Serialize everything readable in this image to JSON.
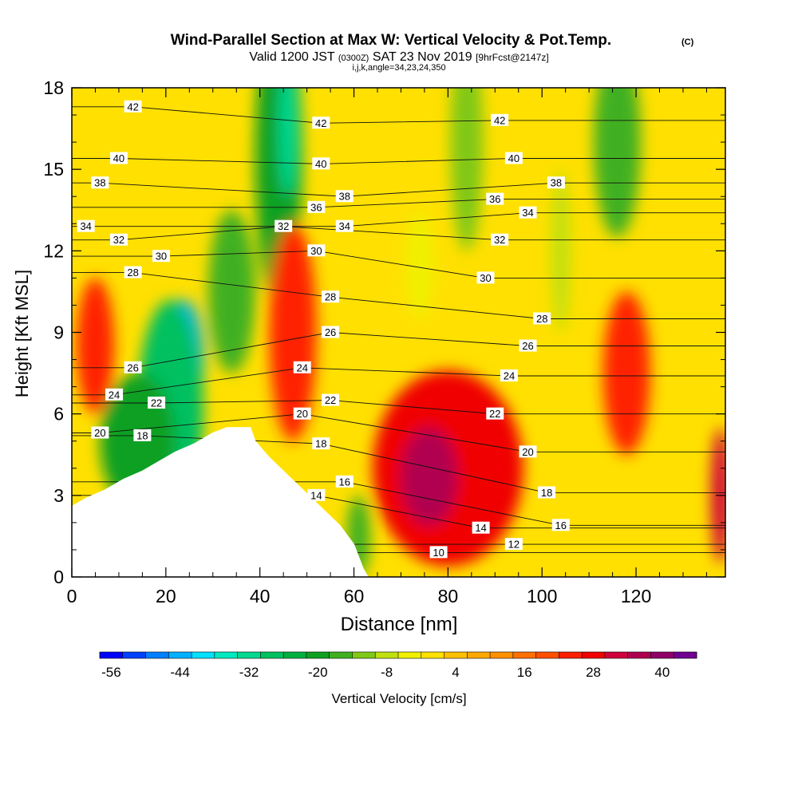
{
  "header": {
    "title": "Wind-Parallel Section at Max W: Vertical Velocity & Pot.Temp.",
    "copyright": "(C)",
    "valid_prefix": "Valid 1200 JST",
    "valid_utc": "(0300Z)",
    "valid_date": "SAT 23 Nov 2019",
    "forecast_info": "[9hrFcst@2147z]",
    "indices": "i,j,k,angle=34,23,24,350"
  },
  "chart_data": {
    "type": "heatmap",
    "xlabel": "Distance [nm]",
    "ylabel": "Height [Kft MSL]",
    "xlim": [
      0,
      139
    ],
    "ylim": [
      0,
      18
    ],
    "x_ticks": [
      0,
      20,
      40,
      60,
      80,
      100,
      120
    ],
    "y_ticks": [
      0,
      3,
      6,
      9,
      12,
      15,
      18
    ],
    "colorbar": {
      "label": "Vertical Velocity [cm/s]",
      "tick_labels": [
        "-56",
        "-44",
        "-32",
        "-20",
        "-8",
        "4",
        "16",
        "28",
        "40"
      ],
      "levels": [
        -56,
        -52,
        -48,
        -44,
        -40,
        -36,
        -32,
        -28,
        -24,
        -20,
        -16,
        -12,
        -8,
        -4,
        0,
        4,
        8,
        12,
        16,
        20,
        24,
        28,
        32,
        36,
        40,
        44
      ],
      "colors": [
        "#0000ff",
        "#0040ff",
        "#0080ff",
        "#00b0ff",
        "#00e0ff",
        "#00e8c0",
        "#00d890",
        "#00c060",
        "#00b040",
        "#10a020",
        "#40b020",
        "#80c818",
        "#c0e010",
        "#f0f000",
        "#ffe000",
        "#ffc000",
        "#ffa800",
        "#ff9000",
        "#ff7000",
        "#ff5000",
        "#ff2000",
        "#f00000",
        "#d0003c",
        "#b00050",
        "#900068",
        "#700090"
      ]
    },
    "terrain_top_kft": [
      [
        0,
        2.6
      ],
      [
        3,
        2.9
      ],
      [
        7,
        3.2
      ],
      [
        11,
        3.6
      ],
      [
        15,
        3.9
      ],
      [
        18,
        4.2
      ],
      [
        22,
        4.6
      ],
      [
        26,
        4.9
      ],
      [
        30,
        5.3
      ],
      [
        33,
        5.5
      ],
      [
        38,
        5.5
      ],
      [
        39,
        5.0
      ],
      [
        42,
        4.4
      ],
      [
        45,
        3.9
      ],
      [
        48,
        3.4
      ],
      [
        51,
        2.9
      ],
      [
        54,
        2.4
      ],
      [
        57,
        1.9
      ],
      [
        60,
        1.2
      ],
      [
        62,
        0.3
      ],
      [
        63,
        0
      ]
    ],
    "vertical_velocity_features": [
      {
        "x": 24,
        "y": 7.8,
        "rx": 4,
        "ry": 2.4,
        "value": -44
      },
      {
        "x": 21,
        "y": 6.2,
        "rx": 7,
        "ry": 4.0,
        "value": -28
      },
      {
        "x": 14,
        "y": 5.0,
        "rx": 8,
        "ry": 2.5,
        "value": -20
      },
      {
        "x": 34,
        "y": 10.5,
        "rx": 5,
        "ry": 3.0,
        "value": -14
      },
      {
        "x": 44,
        "y": 15.5,
        "rx": 5,
        "ry": 5.5,
        "value": -20
      },
      {
        "x": 46,
        "y": 16.5,
        "rx": 2,
        "ry": 2.5,
        "value": -32
      },
      {
        "x": 61,
        "y": 1.5,
        "rx": 2.5,
        "ry": 1.5,
        "value": -16
      },
      {
        "x": 84,
        "y": 16.0,
        "rx": 3.5,
        "ry": 4.0,
        "value": -12
      },
      {
        "x": 116,
        "y": 16.0,
        "rx": 5,
        "ry": 3.5,
        "value": -16
      },
      {
        "x": 104,
        "y": 12.0,
        "rx": 2,
        "ry": 3.0,
        "value": -8
      },
      {
        "x": 74,
        "y": 11.5,
        "rx": 3,
        "ry": 2.0,
        "value": -4
      },
      {
        "x": 5,
        "y": 8.5,
        "rx": 4,
        "ry": 2.5,
        "value": 24
      },
      {
        "x": 47,
        "y": 9.0,
        "rx": 5,
        "ry": 4.0,
        "value": 26
      },
      {
        "x": 80,
        "y": 4.0,
        "rx": 16,
        "ry": 3.6,
        "value": 30
      },
      {
        "x": 76,
        "y": 3.7,
        "rx": 6,
        "ry": 1.8,
        "value": 38
      },
      {
        "x": 118,
        "y": 7.5,
        "rx": 5,
        "ry": 3.0,
        "value": 24
      },
      {
        "x": 138,
        "y": 3.0,
        "rx": 2,
        "ry": 2.5,
        "value": 34
      }
    ],
    "theta_label_positions": [
      {
        "label": "42",
        "x": 13,
        "y": 17.3
      },
      {
        "label": "42",
        "x": 53,
        "y": 16.7
      },
      {
        "label": "42",
        "x": 91,
        "y": 16.8
      },
      {
        "label": "40",
        "x": 10,
        "y": 15.4
      },
      {
        "label": "40",
        "x": 53,
        "y": 15.2
      },
      {
        "label": "40",
        "x": 94,
        "y": 15.4
      },
      {
        "label": "38",
        "x": 6,
        "y": 14.5
      },
      {
        "label": "38",
        "x": 58,
        "y": 14.0
      },
      {
        "label": "38",
        "x": 103,
        "y": 14.5
      },
      {
        "label": "36",
        "x": 52,
        "y": 13.6
      },
      {
        "label": "36",
        "x": 90,
        "y": 13.9
      },
      {
        "label": "34",
        "x": 3,
        "y": 12.9
      },
      {
        "label": "34",
        "x": 58,
        "y": 12.9
      },
      {
        "label": "34",
        "x": 97,
        "y": 13.4
      },
      {
        "label": "32",
        "x": 10,
        "y": 12.4
      },
      {
        "label": "32",
        "x": 45,
        "y": 12.9
      },
      {
        "label": "32",
        "x": 91,
        "y": 12.4
      },
      {
        "label": "30",
        "x": 19,
        "y": 11.8
      },
      {
        "label": "30",
        "x": 52,
        "y": 12.0
      },
      {
        "label": "30",
        "x": 88,
        "y": 11.0
      },
      {
        "label": "28",
        "x": 13,
        "y": 11.2
      },
      {
        "label": "28",
        "x": 55,
        "y": 10.3
      },
      {
        "label": "28",
        "x": 100,
        "y": 9.5
      },
      {
        "label": "26",
        "x": 13,
        "y": 7.7
      },
      {
        "label": "26",
        "x": 55,
        "y": 9.0
      },
      {
        "label": "26",
        "x": 97,
        "y": 8.5
      },
      {
        "label": "24",
        "x": 9,
        "y": 6.7
      },
      {
        "label": "24",
        "x": 49,
        "y": 7.7
      },
      {
        "label": "24",
        "x": 93,
        "y": 7.4
      },
      {
        "label": "22",
        "x": 18,
        "y": 6.4
      },
      {
        "label": "22",
        "x": 55,
        "y": 6.5
      },
      {
        "label": "22",
        "x": 90,
        "y": 6.0
      },
      {
        "label": "20",
        "x": 6,
        "y": 5.3
      },
      {
        "label": "20",
        "x": 49,
        "y": 6.0
      },
      {
        "label": "20",
        "x": 97,
        "y": 4.6
      },
      {
        "label": "18",
        "x": 15,
        "y": 5.2
      },
      {
        "label": "18",
        "x": 53,
        "y": 4.9
      },
      {
        "label": "18",
        "x": 101,
        "y": 3.1
      },
      {
        "label": "16",
        "x": 58,
        "y": 3.5
      },
      {
        "label": "16",
        "x": 104,
        "y": 1.9
      },
      {
        "label": "14",
        "x": 52,
        "y": 3.0
      },
      {
        "label": "14",
        "x": 87,
        "y": 1.8
      },
      {
        "label": "12",
        "x": 94,
        "y": 1.2
      },
      {
        "label": "10",
        "x": 78,
        "y": 0.9
      }
    ]
  }
}
